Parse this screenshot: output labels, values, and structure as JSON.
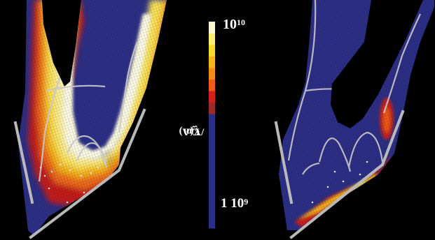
{
  "colorbar": {
    "top_base": "10",
    "top_exp": "10",
    "bottom_prefix": "1 10",
    "bottom_exp": "9",
    "title_prefix": "Cm",
    "title_exp": "-3",
    "title_suffix": "/Y(A)",
    "colors_bottom_to_top": [
      "#2b2e85",
      "#9b2b28",
      "#d41f1c",
      "#ef5a18",
      "#f08e17",
      "#f6b61b",
      "#f8d92e",
      "#fbee75",
      "#fdf8cf"
    ]
  },
  "panels": [
    {
      "id": "left",
      "description_key": "map-left"
    },
    {
      "id": "right",
      "description_key": "map-right"
    }
  ]
}
